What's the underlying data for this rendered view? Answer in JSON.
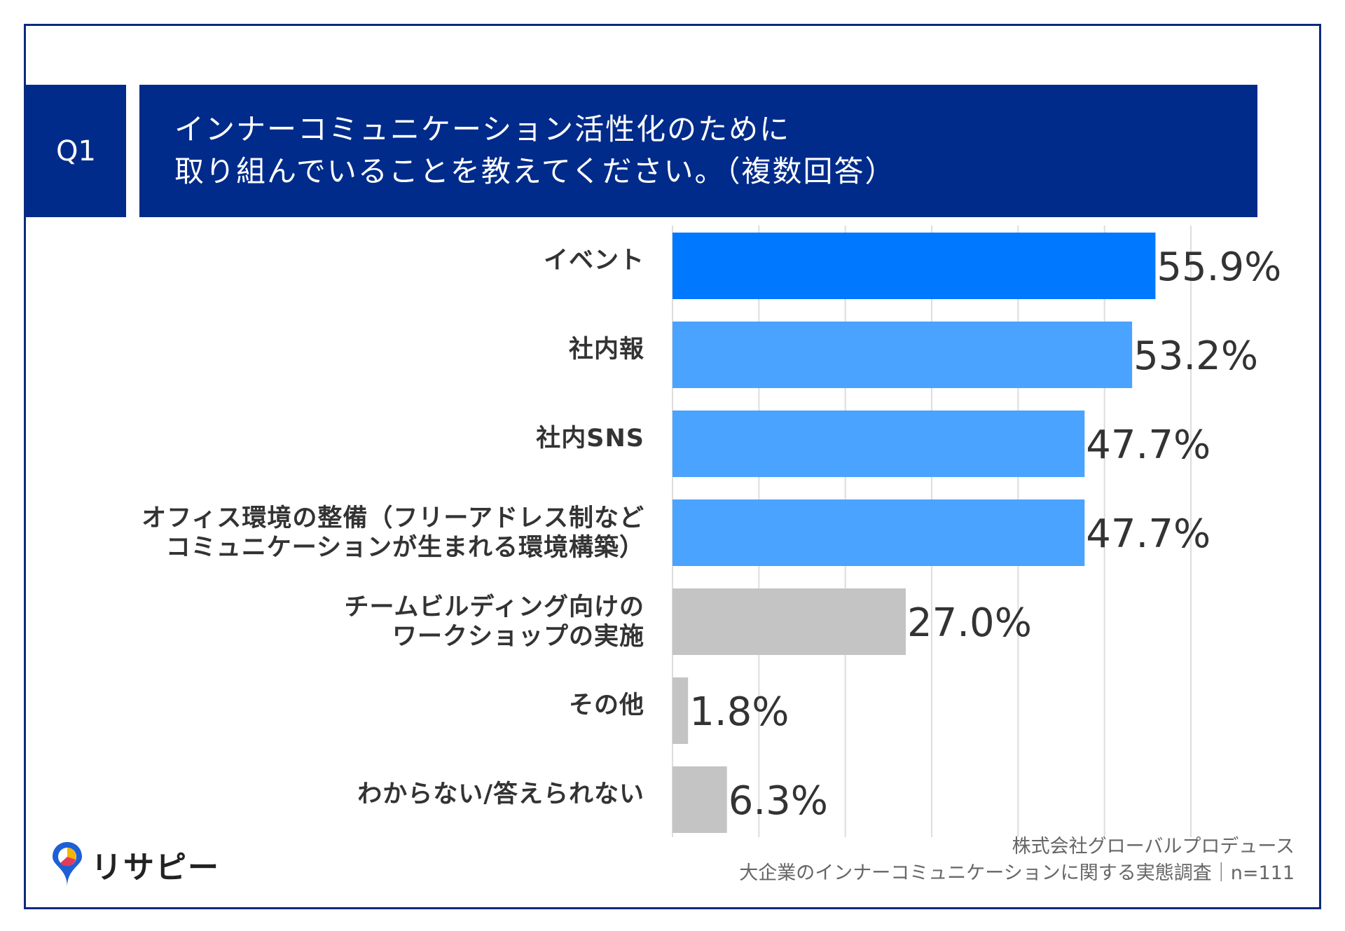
{
  "question": {
    "number": "Q1",
    "title_line1": "インナーコミュニケーション活性化のために",
    "title_line2": "取り組んでいることを教えてください。（複数回答）"
  },
  "colors": {
    "header_bg": "#002b8a",
    "bar_top": "#0078ff",
    "bar_blue": "#4aa3ff",
    "bar_gray": "#c4c4c4",
    "grid": "#dddddd"
  },
  "chart_data": {
    "type": "bar",
    "orientation": "horizontal",
    "title": "インナーコミュニケーション活性化のために取り組んでいることを教えてください。（複数回答）",
    "categories": [
      [
        "イベント"
      ],
      [
        "社内報"
      ],
      [
        "社内SNS"
      ],
      [
        "オフィス環境の整備（フリーアドレス制など",
        "コミュニケーションが生まれる環境構築）"
      ],
      [
        "チームビルディング向けの",
        "ワークショップの実施"
      ],
      [
        "その他"
      ],
      [
        "わからない/答えられない"
      ]
    ],
    "values": [
      55.9,
      53.2,
      47.7,
      47.7,
      27.0,
      1.8,
      6.3
    ],
    "value_labels": [
      "55.9%",
      "53.2%",
      "47.7%",
      "47.7%",
      "27.0%",
      "1.8%",
      "6.3%"
    ],
    "color_keys": [
      "bar_top",
      "bar_blue",
      "bar_blue",
      "bar_blue",
      "bar_gray",
      "bar_gray",
      "bar_gray"
    ],
    "xlim": [
      0,
      60
    ],
    "grid_step": 10,
    "xlabel": "",
    "ylabel": ""
  },
  "source": {
    "line1": "株式会社グローバルプロデュース",
    "line2": "大企業のインナーコミュニケーションに関する実態調査｜n=111"
  },
  "logo": {
    "text": "リサピー"
  }
}
